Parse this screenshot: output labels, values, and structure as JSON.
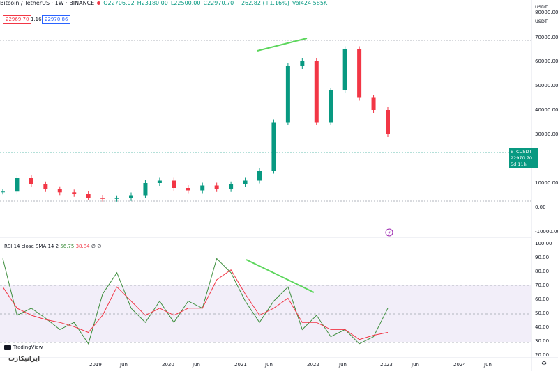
{
  "header": {
    "symbol": "Bitcoin / TetherUS · 1W · BINANCE",
    "open": "O22706.02",
    "high": "H23180.00",
    "low": "L22500.00",
    "close": "C22970.70",
    "change": "+262.82 (+1.16%)",
    "volume": "Vol424.585K"
  },
  "bid": "22969.70",
  "spread": "1.16",
  "ask": "22970.86",
  "currency": "USDT",
  "price_axis": {
    "top": "80000.00",
    "ticks": [
      "70000.00",
      "60000.00",
      "50000.00",
      "40000.00",
      "30000.00",
      "20000.00",
      "10000.00",
      "0.00",
      "-10000.00"
    ]
  },
  "price_tag": {
    "symbol": "BTCUSDT",
    "price": "22970.70",
    "countdown": "5d 11h"
  },
  "rsi": {
    "label": "RSI 14 close SMA 14 2",
    "value1": "56.75",
    "value2": "38.84",
    "symbols": "∅ ∅",
    "ticks": [
      "100.00",
      "90.00",
      "80.00",
      "70.00",
      "60.00",
      "50.00",
      "40.00",
      "30.00",
      "20.00"
    ]
  },
  "time_axis": [
    "2019",
    "Jun",
    "2020",
    "Jun",
    "2021",
    "Jun",
    "2022",
    "Jun",
    "2023",
    "Jun",
    "2024",
    "Jun"
  ],
  "logo_text": "TradingView",
  "watermark": "ایرانیکارت",
  "colors": {
    "up": "#089981",
    "down": "#f23645",
    "sma": "#f23645",
    "rsi": "#3f8f3f",
    "annotation": "#5cd65c",
    "band": "#ede7f6"
  },
  "chart_data": [
    {
      "type": "candlestick",
      "title": "Bitcoin / TetherUS · 1W · BINANCE",
      "ylim": [
        -10000,
        80000
      ],
      "x": [
        "2018-07",
        "2018-09",
        "2018-11",
        "2019-01",
        "2019-03",
        "2019-05",
        "2019-07",
        "2019-09",
        "2019-11",
        "2020-01",
        "2020-03",
        "2020-05",
        "2020-07",
        "2020-09",
        "2020-11",
        "2021-01",
        "2021-03",
        "2021-05",
        "2021-07",
        "2021-09",
        "2021-11",
        "2022-01",
        "2022-03",
        "2022-05",
        "2022-07",
        "2022-09",
        "2022-11",
        "2023-01"
      ],
      "series": [
        {
          "values": [
            6500,
            12000,
            9500,
            7500,
            6200,
            5500,
            4000,
            3500,
            3800,
            5000,
            10000,
            11000,
            8000,
            7000,
            9000,
            7500,
            9500,
            11000,
            15000,
            35000,
            58000,
            60000,
            35000,
            48000,
            65000,
            45000,
            40000,
            30000
          ]
        }
      ]
    },
    {
      "type": "line",
      "ylim": [
        20,
        100
      ],
      "series": [
        {
          "values": [
            90,
            50,
            55,
            48,
            40,
            45,
            30,
            65,
            80,
            55,
            45,
            60,
            45,
            60,
            55,
            90,
            80,
            60,
            45,
            60,
            70,
            40,
            50,
            35,
            40,
            30,
            35,
            55
          ]
        },
        {
          "values": [
            70,
            55,
            50,
            47,
            45,
            42,
            38,
            50,
            70,
            60,
            50,
            55,
            50,
            55,
            55,
            75,
            82,
            65,
            50,
            55,
            62,
            45,
            45,
            40,
            40,
            33,
            36,
            38
          ]
        }
      ]
    }
  ]
}
